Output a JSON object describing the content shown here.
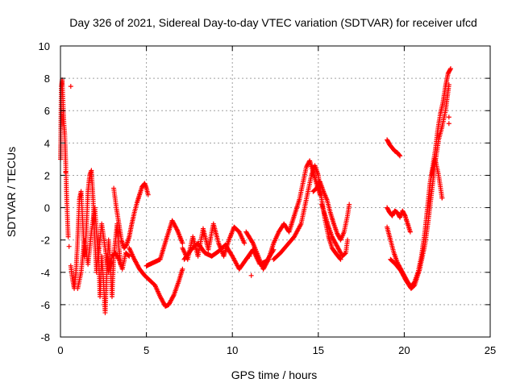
{
  "chart_data": {
    "type": "scatter",
    "title": "Day 326 of 2021, Sidereal Day-to-day VTEC variation (SDTVAR) for receiver ufcd",
    "xlabel": "GPS time / hours",
    "ylabel": "SDTVAR / TECUs",
    "xlim": [
      0,
      25
    ],
    "ylim": [
      -8,
      10
    ],
    "xticks": [
      "0",
      "5",
      "10",
      "15",
      "20",
      "25"
    ],
    "yticks": [
      "-8",
      "-6",
      "-4",
      "-2",
      "0",
      "2",
      "4",
      "6",
      "8",
      "10"
    ],
    "grid": true,
    "marker": "+",
    "color": "#ff0000",
    "series": [
      {
        "name": "SDTVAR",
        "tracks": [
          [
            [
              0.0,
              3.0
            ],
            [
              0.05,
              7.5
            ],
            [
              0.1,
              7.9
            ],
            [
              0.15,
              6.5
            ],
            [
              0.2,
              5.2
            ],
            [
              0.25,
              4.5
            ],
            [
              0.3,
              3.0
            ],
            [
              0.35,
              1.0
            ],
            [
              0.4,
              -0.5
            ],
            [
              0.45,
              -1.8
            ]
          ],
          [
            [
              0.6,
              -3.6
            ],
            [
              0.7,
              -4.4
            ],
            [
              0.8,
              -5.0
            ],
            [
              0.9,
              -4.0
            ],
            [
              1.0,
              -2.0
            ],
            [
              1.1,
              0.5
            ],
            [
              1.2,
              1.0
            ],
            [
              1.3,
              -1.0
            ],
            [
              1.4,
              -3.0
            ],
            [
              1.5,
              -1.5
            ],
            [
              1.6,
              1.0
            ],
            [
              1.7,
              2.0
            ],
            [
              1.8,
              2.3
            ],
            [
              1.9,
              0.5
            ],
            [
              2.0,
              -2.0
            ],
            [
              2.1,
              -4.0
            ],
            [
              2.2,
              -2.5
            ],
            [
              2.3,
              -5.5
            ],
            [
              2.4,
              -3.0
            ],
            [
              2.5,
              -4.5
            ],
            [
              2.6,
              -6.5
            ],
            [
              2.7,
              -4.0
            ],
            [
              2.8,
              -2.0
            ],
            [
              2.9,
              -3.5
            ],
            [
              3.0,
              -5.5
            ],
            [
              3.1,
              -3.0
            ],
            [
              3.2,
              -2.0
            ],
            [
              3.3,
              -1.0
            ],
            [
              3.4,
              -2.5
            ],
            [
              3.5,
              -3.5
            ]
          ],
          [
            [
              1.0,
              -5.0
            ],
            [
              1.2,
              -4.0
            ],
            [
              1.4,
              -2.0
            ],
            [
              1.6,
              -3.5
            ],
            [
              1.8,
              -1.5
            ],
            [
              2.0,
              0.0
            ],
            [
              2.2,
              -3.0
            ],
            [
              2.4,
              -1.0
            ],
            [
              2.6,
              -2.5
            ],
            [
              2.8,
              -4.0
            ],
            [
              3.0,
              -3.0
            ],
            [
              3.2,
              -2.8
            ],
            [
              3.4,
              -3.2
            ],
            [
              3.6,
              -3.8
            ],
            [
              3.8,
              -2.8
            ],
            [
              4.0,
              -3.0
            ]
          ],
          [
            [
              3.1,
              1.2
            ],
            [
              3.25,
              0.0
            ],
            [
              3.4,
              -1.0
            ],
            [
              3.55,
              -2.0
            ],
            [
              3.7,
              -2.5
            ],
            [
              3.85,
              -2.3
            ],
            [
              4.0,
              -1.8
            ],
            [
              4.15,
              -1.0
            ],
            [
              4.3,
              -0.3
            ],
            [
              4.45,
              0.3
            ],
            [
              4.6,
              0.8
            ],
            [
              4.75,
              1.3
            ],
            [
              4.9,
              1.5
            ],
            [
              5.0,
              1.2
            ],
            [
              5.1,
              0.8
            ]
          ],
          [
            [
              4.0,
              -2.5
            ],
            [
              4.3,
              -3.2
            ],
            [
              4.6,
              -3.8
            ],
            [
              4.9,
              -4.2
            ],
            [
              5.2,
              -4.5
            ],
            [
              5.5,
              -4.8
            ],
            [
              5.8,
              -5.5
            ],
            [
              6.1,
              -6.1
            ],
            [
              6.3,
              -6.0
            ],
            [
              6.6,
              -5.4
            ],
            [
              6.9,
              -4.5
            ],
            [
              7.1,
              -3.8
            ]
          ],
          [
            [
              5.0,
              -3.6
            ],
            [
              5.4,
              -3.4
            ],
            [
              5.8,
              -3.2
            ],
            [
              6.2,
              -1.8
            ],
            [
              6.5,
              -0.8
            ],
            [
              6.8,
              -1.4
            ],
            [
              7.1,
              -2.2
            ]
          ],
          [
            [
              7.1,
              -2.5
            ],
            [
              7.4,
              -3.2
            ],
            [
              7.7,
              -1.8
            ],
            [
              8.0,
              -3.0
            ],
            [
              8.3,
              -1.3
            ],
            [
              8.6,
              -2.6
            ],
            [
              8.9,
              -1.0
            ],
            [
              9.2,
              -2.2
            ],
            [
              9.5,
              -3.0
            ],
            [
              9.8,
              -2.0
            ],
            [
              10.1,
              -1.2
            ],
            [
              10.4,
              -1.5
            ],
            [
              10.7,
              -2.2
            ]
          ],
          [
            [
              7.2,
              -3.2
            ],
            [
              7.6,
              -2.6
            ],
            [
              8.0,
              -2.2
            ],
            [
              8.4,
              -2.8
            ],
            [
              8.8,
              -3.0
            ],
            [
              9.2,
              -2.7
            ],
            [
              9.6,
              -2.3
            ],
            [
              10.0,
              -3.0
            ],
            [
              10.4,
              -3.8
            ],
            [
              10.8,
              -3.2
            ],
            [
              11.2,
              -2.6
            ],
            [
              11.6,
              -3.5
            ],
            [
              12.0,
              -3.3
            ],
            [
              12.4,
              -2.6
            ]
          ],
          [
            [
              10.8,
              -1.5
            ],
            [
              11.2,
              -2.2
            ],
            [
              11.5,
              -3.0
            ],
            [
              11.8,
              -3.8
            ],
            [
              12.1,
              -3.2
            ],
            [
              12.4,
              -2.2
            ],
            [
              12.7,
              -1.5
            ],
            [
              13.0,
              -1.0
            ],
            [
              13.3,
              -1.5
            ],
            [
              13.6,
              -0.5
            ],
            [
              13.9,
              0.5
            ],
            [
              14.1,
              1.5
            ],
            [
              14.3,
              2.5
            ],
            [
              14.5,
              2.9
            ],
            [
              14.7,
              2.2
            ],
            [
              14.9,
              1.5
            ],
            [
              15.1,
              0.8
            ]
          ],
          [
            [
              12.4,
              -3.2
            ],
            [
              12.8,
              -2.8
            ],
            [
              13.2,
              -2.3
            ],
            [
              13.6,
              -1.8
            ],
            [
              14.0,
              -1.0
            ],
            [
              14.2,
              0.0
            ],
            [
              14.4,
              1.0
            ],
            [
              14.6,
              2.0
            ],
            [
              14.8,
              2.6
            ],
            [
              15.0,
              2.0
            ],
            [
              15.2,
              0.5
            ],
            [
              15.4,
              -0.8
            ],
            [
              15.6,
              -1.8
            ],
            [
              15.8,
              -2.5
            ],
            [
              16.0,
              -2.8
            ],
            [
              16.3,
              -3.2
            ]
          ],
          [
            [
              14.7,
              1.0
            ],
            [
              14.9,
              1.2
            ],
            [
              15.1,
              1.6
            ],
            [
              15.3,
              1.0
            ],
            [
              15.5,
              0.5
            ],
            [
              15.7,
              -0.3
            ],
            [
              15.9,
              -1.0
            ],
            [
              16.1,
              -1.6
            ],
            [
              16.3,
              -2.0
            ],
            [
              16.5,
              -1.5
            ],
            [
              16.7,
              -0.5
            ],
            [
              16.8,
              0.2
            ]
          ],
          [
            [
              15.2,
              0.2
            ],
            [
              15.4,
              -0.5
            ],
            [
              15.6,
              -1.2
            ],
            [
              15.8,
              -1.8
            ],
            [
              16.0,
              -2.2
            ],
            [
              16.2,
              -2.6
            ],
            [
              16.4,
              -3.0
            ],
            [
              16.6,
              -2.8
            ],
            [
              16.7,
              -2.0
            ]
          ],
          [
            [
              19.0,
              4.2
            ],
            [
              19.15,
              3.9
            ],
            [
              19.3,
              3.7
            ],
            [
              19.45,
              3.5
            ],
            [
              19.6,
              3.4
            ],
            [
              19.75,
              3.2
            ]
          ],
          [
            [
              19.0,
              0.0
            ],
            [
              19.15,
              -0.3
            ],
            [
              19.3,
              -0.5
            ],
            [
              19.45,
              -0.2
            ],
            [
              19.6,
              -0.3
            ],
            [
              19.75,
              -0.6
            ],
            [
              19.9,
              -0.2
            ],
            [
              20.05,
              -0.5
            ],
            [
              20.2,
              -1.0
            ],
            [
              20.35,
              -1.5
            ]
          ],
          [
            [
              19.0,
              -1.2
            ],
            [
              19.2,
              -2.0
            ],
            [
              19.4,
              -2.8
            ],
            [
              19.6,
              -3.4
            ],
            [
              19.8,
              -3.8
            ],
            [
              20.0,
              -4.2
            ],
            [
              20.2,
              -4.6
            ],
            [
              20.4,
              -4.9
            ],
            [
              20.6,
              -4.6
            ],
            [
              20.8,
              -4.0
            ],
            [
              21.0,
              -3.0
            ],
            [
              21.2,
              -1.5
            ],
            [
              21.35,
              0.0
            ],
            [
              21.5,
              1.5
            ],
            [
              21.65,
              2.5
            ],
            [
              21.8,
              3.5
            ],
            [
              21.95,
              4.8
            ],
            [
              22.1,
              5.8
            ],
            [
              22.25,
              6.5
            ],
            [
              22.4,
              7.5
            ],
            [
              22.55,
              8.3
            ],
            [
              22.7,
              8.6
            ]
          ],
          [
            [
              19.2,
              -3.2
            ],
            [
              19.5,
              -3.5
            ],
            [
              19.8,
              -3.9
            ],
            [
              20.1,
              -4.5
            ],
            [
              20.4,
              -5.0
            ],
            [
              20.6,
              -4.8
            ],
            [
              20.9,
              -3.8
            ],
            [
              21.2,
              -2.3
            ],
            [
              21.4,
              -0.8
            ],
            [
              21.6,
              1.0
            ],
            [
              21.8,
              2.8
            ],
            [
              22.0,
              4.2
            ],
            [
              22.2,
              5.0
            ],
            [
              22.4,
              6.0
            ],
            [
              22.6,
              7.6
            ]
          ],
          [
            [
              21.6,
              2.0
            ],
            [
              21.8,
              3.0
            ],
            [
              22.0,
              2.0
            ],
            [
              22.2,
              0.6
            ]
          ]
        ],
        "outliers": [
          [
            0.6,
            7.5
          ],
          [
            0.3,
            2.2
          ],
          [
            22.6,
            5.6
          ],
          [
            22.6,
            5.2
          ],
          [
            22.2,
            0.6
          ],
          [
            11.1,
            -4.2
          ],
          [
            11.0,
            -3.0
          ],
          [
            0.5,
            -2.4
          ]
        ]
      }
    ]
  }
}
